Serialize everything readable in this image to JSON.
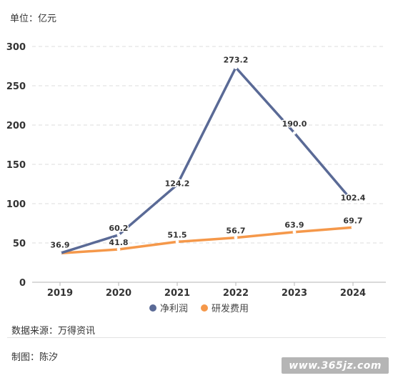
{
  "unit_label": "单位：亿元",
  "footer": {
    "source": "数据来源：万得资讯",
    "author": "制图：陈汐"
  },
  "watermark": "www.365jz.com",
  "chart_data": {
    "type": "line",
    "title": "",
    "xlabel": "",
    "ylabel": "",
    "categories": [
      "2019",
      "2020",
      "2021",
      "2022",
      "2023",
      "2024"
    ],
    "ylim": [
      0,
      300
    ],
    "yticks": [
      0,
      50,
      100,
      150,
      200,
      250,
      300
    ],
    "grid": true,
    "legend_position": "bottom",
    "series": [
      {
        "name": "净利润",
        "color": "#5a6a96",
        "values": [
          36.9,
          60.2,
          124.2,
          273.2,
          190.0,
          102.4
        ],
        "labels": [
          "36.9",
          "60.2",
          "124.2",
          "273.2",
          "190.0",
          "102.4"
        ]
      },
      {
        "name": "研发费用",
        "color": "#f5984a",
        "values": [
          36.9,
          41.8,
          51.5,
          56.7,
          63.9,
          69.7
        ],
        "labels": [
          "",
          "41.8",
          "51.5",
          "56.7",
          "63.9",
          "69.7"
        ]
      }
    ]
  }
}
